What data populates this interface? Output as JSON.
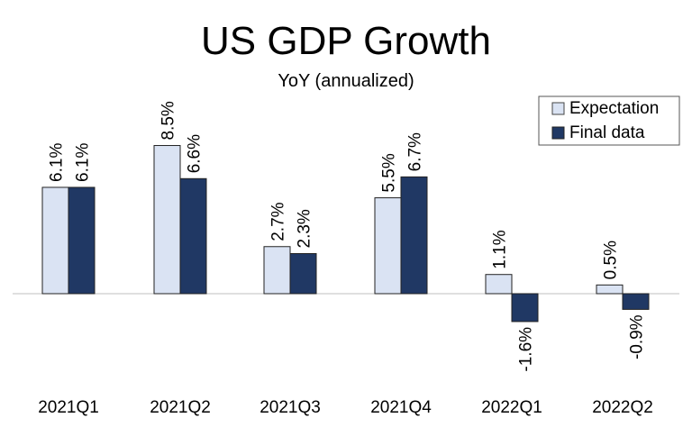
{
  "chart_data": {
    "type": "bar",
    "title": "US GDP Growth",
    "subtitle": "YoY (annualized)",
    "xlabel": "",
    "ylabel": "",
    "categories": [
      "2021Q1",
      "2021Q2",
      "2021Q3",
      "2021Q4",
      "2022Q1",
      "2022Q2"
    ],
    "series": [
      {
        "name": "Expectation",
        "values": [
          6.1,
          8.5,
          2.7,
          5.5,
          1.1,
          0.5
        ],
        "labels": [
          "6.1%",
          "8.5%",
          "2.7%",
          "5.5%",
          "1.1%",
          "0.5%"
        ],
        "color": "#DAE3F3"
      },
      {
        "name": "Final data",
        "values": [
          6.1,
          6.6,
          2.3,
          6.7,
          -1.6,
          -0.9
        ],
        "labels": [
          "6.1%",
          "6.6%",
          "2.3%",
          "6.7%",
          "-1.6%",
          "-0.9%"
        ],
        "color": "#203864"
      }
    ],
    "unit": "%",
    "grid": false,
    "legend": "top-right"
  }
}
